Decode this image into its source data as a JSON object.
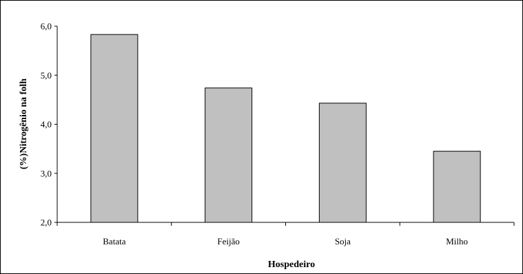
{
  "chart_data": {
    "type": "bar",
    "title": "",
    "xlabel": "Hospedeiro",
    "ylabel": "(%)Nitrogênio na folh",
    "categories": [
      "Batata",
      "Feijão",
      "Soja",
      "Milho"
    ],
    "values": [
      5.83,
      4.74,
      4.43,
      3.45
    ],
    "ylim": [
      2.0,
      6.0
    ],
    "yticks": [
      2.0,
      3.0,
      4.0,
      5.0,
      6.0
    ],
    "ytick_labels": [
      "2,0",
      "3,0",
      "4,0",
      "5,0",
      "6,0"
    ],
    "grid": false,
    "legend": "none",
    "bar_color": "#c0c0c0",
    "bar_edge_color": "#000000"
  }
}
